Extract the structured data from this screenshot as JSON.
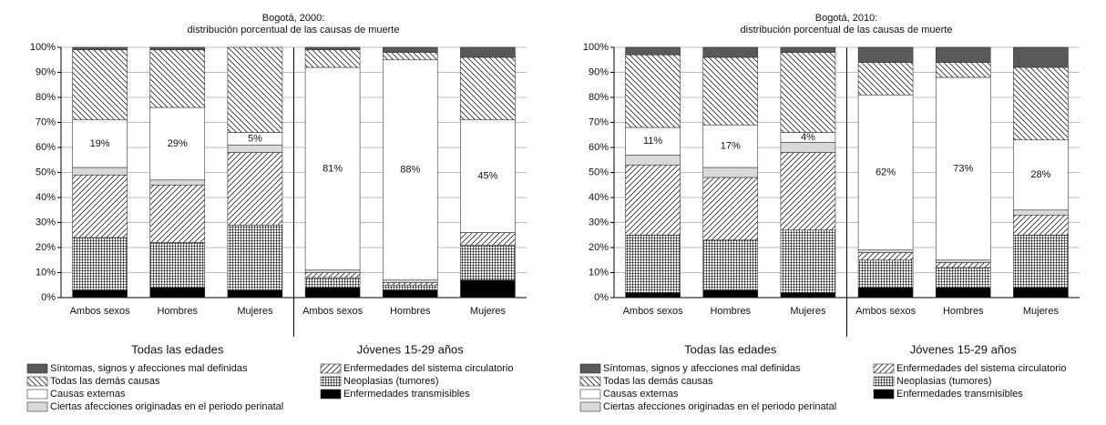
{
  "chart_data": [
    {
      "type": "stacked-bar",
      "title": "Bogotá, 2000:",
      "subtitle": "distribución porcentual de las causas de muerte",
      "groups": [
        {
          "name": "Todas las edades",
          "categories": [
            "Ambos sexos",
            "Hombres",
            "Mujeres"
          ]
        },
        {
          "name": "Jóvenes 15-29 años",
          "categories": [
            "Ambos sexos",
            "Hombres",
            "Mujeres"
          ]
        }
      ],
      "ylim": [
        0,
        100
      ],
      "yticks": [
        {
          "value": 0,
          "label": "0%"
        },
        {
          "value": 10,
          "label": "10%"
        },
        {
          "value": 20,
          "label": "20%"
        },
        {
          "value": 30,
          "label": "30%"
        },
        {
          "value": 40,
          "label": "40%"
        },
        {
          "value": 50,
          "label": "50%"
        },
        {
          "value": 60,
          "label": "60%"
        },
        {
          "value": 70,
          "label": "70%"
        },
        {
          "value": 80,
          "label": "80%"
        },
        {
          "value": 90,
          "label": "90%"
        },
        {
          "value": 100,
          "label": "100%"
        }
      ],
      "grid": true,
      "series": [
        {
          "name": "Enfermedades transmisibles",
          "color": "#000000",
          "pattern": "solid",
          "values": [
            3,
            4,
            3,
            4,
            3,
            7
          ]
        },
        {
          "name": "Neoplasias (tumores)",
          "color": "#000000",
          "pattern": "grid",
          "values": [
            21,
            18,
            26,
            4,
            2,
            14
          ]
        },
        {
          "name": "Enfermedades del sistema circulatorio",
          "color": "#000000",
          "pattern": "hatch-up",
          "values": [
            25,
            23,
            29,
            2,
            1,
            5
          ]
        },
        {
          "name": "Ciertas afecciones originadas en el periodo perinatal",
          "color": "#d9d9d9",
          "pattern": "solid",
          "values": [
            3,
            2,
            3,
            1,
            1,
            0
          ]
        },
        {
          "name": "Causas externas",
          "color": "#ffffff",
          "pattern": "solid",
          "values": [
            19,
            29,
            5,
            81,
            88,
            45
          ],
          "value_labels": [
            "19%",
            "29%",
            "5%",
            "81%",
            "88%",
            "45%"
          ]
        },
        {
          "name": "Todas las demás causas",
          "color": "#000000",
          "pattern": "hatch-down",
          "values": [
            28,
            23,
            34,
            7,
            3,
            25
          ]
        },
        {
          "name": "Síntomas, signos y afecciones mal definidas",
          "color": "#595959",
          "pattern": "solid",
          "values": [
            1,
            1,
            0,
            1,
            2,
            4
          ]
        }
      ]
    },
    {
      "type": "stacked-bar",
      "title": "Bogotá, 2010:",
      "subtitle": "distribución porcentual de las causas de muerte",
      "groups": [
        {
          "name": "Todas las edades",
          "categories": [
            "Ambos sexos",
            "Hombres",
            "Mujeres"
          ]
        },
        {
          "name": "Jóvenes 15-29 años",
          "categories": [
            "Ambos sexos",
            "Hombres",
            "Mujeres"
          ]
        }
      ],
      "ylim": [
        0,
        100
      ],
      "yticks": [
        {
          "value": 0,
          "label": "0%"
        },
        {
          "value": 10,
          "label": "10%"
        },
        {
          "value": 20,
          "label": "20%"
        },
        {
          "value": 30,
          "label": "30%"
        },
        {
          "value": 40,
          "label": "40%"
        },
        {
          "value": 50,
          "label": "50%"
        },
        {
          "value": 60,
          "label": "60%"
        },
        {
          "value": 70,
          "label": "70%"
        },
        {
          "value": 80,
          "label": "80%"
        },
        {
          "value": 90,
          "label": "90%"
        },
        {
          "value": 100,
          "label": "100%"
        }
      ],
      "grid": true,
      "series": [
        {
          "name": "Enfermedades transmisibles",
          "color": "#000000",
          "pattern": "solid",
          "values": [
            2,
            3,
            2,
            4,
            4,
            4
          ]
        },
        {
          "name": "Neoplasias (tumores)",
          "color": "#000000",
          "pattern": "grid",
          "values": [
            23,
            20,
            25,
            11,
            8,
            21
          ]
        },
        {
          "name": "Enfermedades del sistema circulatorio",
          "color": "#000000",
          "pattern": "hatch-up",
          "values": [
            28,
            25,
            31,
            3,
            2,
            8
          ]
        },
        {
          "name": "Ciertas afecciones originadas en el periodo perinatal",
          "color": "#d9d9d9",
          "pattern": "solid",
          "values": [
            4,
            4,
            4,
            1,
            1,
            2
          ]
        },
        {
          "name": "Causas externas",
          "color": "#ffffff",
          "pattern": "solid",
          "values": [
            11,
            17,
            4,
            62,
            73,
            28
          ],
          "value_labels": [
            "11%",
            "17%",
            "4%",
            "62%",
            "73%",
            "28%"
          ]
        },
        {
          "name": "Todas las demás causas",
          "color": "#000000",
          "pattern": "hatch-down",
          "values": [
            29,
            27,
            32,
            13,
            6,
            29
          ]
        },
        {
          "name": "Síntomas, signos y afecciones mal definidas",
          "color": "#595959",
          "pattern": "solid",
          "values": [
            3,
            4,
            2,
            6,
            6,
            8
          ]
        }
      ]
    }
  ]
}
